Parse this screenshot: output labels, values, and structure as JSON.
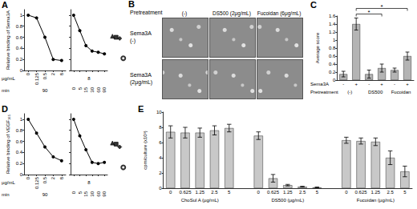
{
  "chart_data": [
    {
      "type": "line",
      "title": "A",
      "ylabel": "Relative binding of Sema3A",
      "color": "#000000",
      "marker": "circle",
      "ylim": [
        0,
        1.1
      ],
      "yticks": [
        0,
        0.2,
        0.4,
        0.6,
        0.8,
        1
      ],
      "subplots": [
        {
          "xlabel": "μg/mL",
          "categories": [
            "0",
            "0.125",
            "0.5",
            "2",
            "8"
          ],
          "values": [
            1,
            0.95,
            0.6,
            0.2,
            0.18
          ],
          "condition": "90"
        },
        {
          "xlabel": "min",
          "categories": [
            "0",
            "5",
            "15",
            "30",
            "60",
            "90"
          ],
          "values": [
            1,
            0.72,
            0.45,
            0.35,
            0.33,
            0.3
          ],
          "condition": "8"
        }
      ],
      "controls": [
        {
          "marker": "triangle",
          "values": [
            0.62
          ]
        },
        {
          "marker": "square",
          "values": [
            0.6
          ]
        },
        {
          "marker": "diamond",
          "values": [
            0.58
          ]
        },
        {
          "marker": "open circle",
          "values": [
            0.22
          ]
        }
      ]
    },
    {
      "type": "bar",
      "title": "C",
      "ylabel": "Average score",
      "color": "#b4b4b4",
      "ylim": [
        0,
        1.6
      ],
      "yticks": [
        0,
        0.2,
        0.4,
        0.6,
        0.8,
        1,
        1.2,
        1.4,
        1.6
      ],
      "categories": [
        "-",
        "+",
        "-",
        "+",
        "-",
        "+"
      ],
      "values": [
        0.15,
        1.4,
        0.15,
        0.3,
        0.25,
        0.6
      ],
      "errors": [
        0.07,
        0.15,
        0.1,
        0.1,
        0.05,
        0.1
      ],
      "row_labels": [
        "Sema3A",
        "Pretreatment"
      ],
      "groups": [
        {
          "label": "(-)",
          "from": 0,
          "to": 1
        },
        {
          "label": "DS500",
          "from": 2,
          "to": 3
        },
        {
          "label": "Fucoidan",
          "from": 4,
          "to": 5
        }
      ],
      "annotations": [
        {
          "text": "*",
          "from": 1,
          "to": 3
        },
        {
          "text": "*",
          "from": 1,
          "to": 5
        }
      ]
    },
    {
      "type": "line",
      "title": "D",
      "ylabel": "Relative binding of VEGF₁₆₅",
      "color": "#000000",
      "marker": "circle",
      "ylim": [
        0,
        1.1
      ],
      "yticks": [
        0,
        0.2,
        0.4,
        0.6,
        0.8,
        1
      ],
      "subplots": [
        {
          "xlabel": "μg/mL",
          "categories": [
            "0",
            "0.125",
            "0.5",
            "2",
            "8"
          ],
          "values": [
            1,
            0.75,
            0.5,
            0.32,
            0.25
          ],
          "condition": "90"
        },
        {
          "xlabel": "min",
          "categories": [
            "0",
            "5",
            "15",
            "30",
            "60",
            "90"
          ],
          "values": [
            1,
            0.7,
            0.45,
            0.22,
            0.2,
            0.22
          ],
          "condition": "8"
        }
      ],
      "controls": [
        {
          "marker": "triangle",
          "values": [
            0.57
          ]
        },
        {
          "marker": "square",
          "values": [
            0.55
          ]
        },
        {
          "marker": "diamond",
          "values": [
            0.5
          ]
        },
        {
          "marker": "open circle",
          "values": [
            0.13
          ]
        }
      ]
    },
    {
      "type": "bar",
      "title": "E",
      "ylabel": "cpm/culture (x10³)",
      "color": "#c8c8c8",
      "ylim": [
        0,
        10
      ],
      "yticks": [
        0,
        2,
        4,
        6,
        8,
        10
      ],
      "categories": [
        "0",
        "0.625",
        "1.25",
        "2.5",
        "5",
        null,
        "0",
        "0.625",
        "1.25",
        "2.5",
        "5",
        null,
        "0",
        "0.625",
        "1.25",
        "2.5",
        "5"
      ],
      "values": [
        7.4,
        7.3,
        7.3,
        7.6,
        7.9,
        null,
        6.9,
        1.3,
        0.4,
        0.2,
        0.1,
        null,
        6.3,
        6.2,
        6.1,
        4.0,
        2.2
      ],
      "errors": [
        0.8,
        0.7,
        0.6,
        0.6,
        0.5,
        null,
        0.5,
        0.5,
        0.1,
        0.05,
        0.05,
        null,
        0.4,
        0.4,
        0.5,
        0.9,
        0.7
      ],
      "groups": [
        {
          "label": "ChoSul A (μg/mL)",
          "from": 0,
          "to": 4
        },
        {
          "label": "DS500 (μg/mL)",
          "from": 6,
          "to": 10
        },
        {
          "label": "Fucoidan (μg/mL)",
          "from": 12,
          "to": 16
        }
      ]
    }
  ],
  "panel_b": {
    "title": "B",
    "row_header": "Pretreatment",
    "columns": [
      "(-)",
      "DS500 (2μg/mL)",
      "Fucoidan (6μg/mL)"
    ],
    "rows": [
      [
        "Sema3A",
        "(-)"
      ],
      [
        "Sema3A",
        "(2μg/mL)"
      ]
    ]
  }
}
